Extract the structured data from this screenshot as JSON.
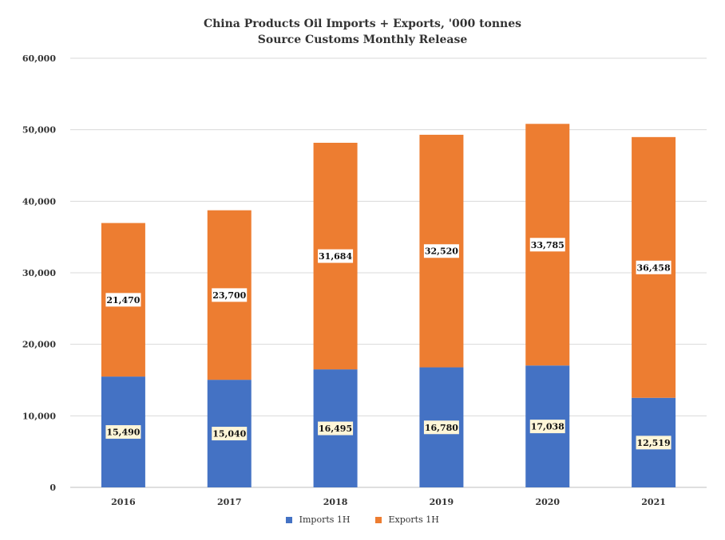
{
  "chart_data": {
    "type": "bar",
    "stacked": true,
    "title": "China Products Oil Imports + Exports, '000 tonnes",
    "subtitle": "Source Customs Monthly Release",
    "categories": [
      "2016",
      "2017",
      "2018",
      "2019",
      "2020",
      "2021"
    ],
    "series": [
      {
        "name": "Imports 1H",
        "color": "#4472c4",
        "values": [
          15490,
          15040,
          16495,
          16780,
          17038,
          12519
        ]
      },
      {
        "name": "Exports 1H",
        "color": "#ed7d31",
        "values": [
          21470,
          23700,
          31684,
          32520,
          33785,
          36458
        ]
      }
    ],
    "data_labels": {
      "Imports 1H": [
        "15,490",
        "15,040",
        "16,495",
        "16,780",
        "17,038",
        "12,519"
      ],
      "Exports 1H": [
        "21,470",
        "23,700",
        "31,684",
        "32,520",
        "33,785",
        "36,458"
      ]
    },
    "ylim": [
      0,
      60000
    ],
    "yticks": [
      0,
      10000,
      20000,
      30000,
      40000,
      50000,
      60000
    ],
    "ytick_labels": [
      "0",
      "10,000",
      "20,000",
      "30,000",
      "40,000",
      "50,000",
      "60,000"
    ],
    "grid": true,
    "legend_position": "bottom"
  }
}
